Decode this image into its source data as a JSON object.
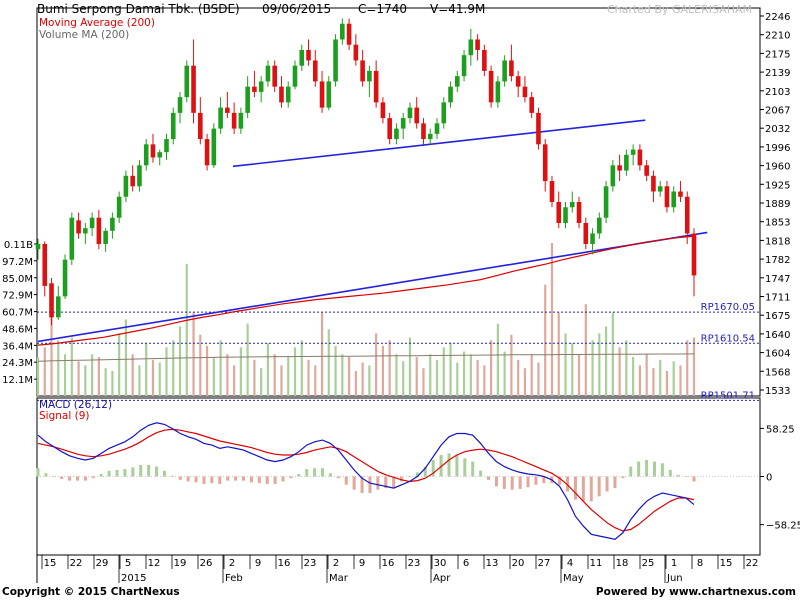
{
  "header": {
    "title": "Bumi Serpong Damai Tbk. (BSDE)",
    "date": "09/06/2015",
    "close": "C=1740",
    "volume": "V=41.9M",
    "credit": "Charted By GALERISAHAM"
  },
  "legend": {
    "ma": "Moving Average (200)",
    "vma": "Volume MA (200)",
    "macd": "MACD (26,12)",
    "signal": "Signal (9)"
  },
  "footer": {
    "copyright": "Copyright © 2015 ChartNexus",
    "powered": "Powered by www.chartnexus.com"
  },
  "colors": {
    "up": "#1e9e1e",
    "down": "#dd1111",
    "vol_up": "#a8cf98",
    "vol_down": "#e0a89a",
    "ma": "#dd0000",
    "trendline": "#2222dd",
    "macd": "#1111cc",
    "signal": "#dd0000",
    "ref": "#2222bb",
    "vma": "#8a7a6a"
  },
  "chart_data": [
    {
      "type": "candlestick",
      "title": "Bumi Serpong Damai Tbk. (BSDE)",
      "y_ticks": [
        "2246",
        "2210",
        "2175",
        "2139",
        "2103",
        "2067",
        "2032",
        "1996",
        "1960",
        "1925",
        "1889",
        "1853",
        "1818",
        "1782",
        "1747",
        "1711",
        "1675",
        "1640",
        "1604",
        "1568",
        "1533"
      ],
      "ylim": [
        1510,
        2250
      ],
      "x_ticks": [
        "15",
        "22",
        "29",
        "5",
        "12",
        "19",
        "26",
        "2",
        "9",
        "16",
        "23",
        "2",
        "9",
        "16",
        "23",
        "30",
        "6",
        "13",
        "20",
        "27",
        "4",
        "11",
        "18",
        "25",
        "1",
        "8",
        "15",
        "22"
      ],
      "month_labels": [
        "2015",
        "Feb",
        "Mar",
        "Apr",
        "May",
        "Jun"
      ],
      "reference_lines": [
        {
          "label": "RP1670.05",
          "value": 1670.05
        },
        {
          "label": "RP1610.54",
          "value": 1610.54
        },
        {
          "label": "RP1501.71",
          "value": 1501.71
        }
      ],
      "ma200_label": "Moving Average (200)",
      "ma200": [
        1607,
        1610,
        1614,
        1618,
        1622,
        1628,
        1634,
        1640,
        1647,
        1654,
        1660,
        1665,
        1671,
        1676,
        1681,
        1686,
        1690,
        1694,
        1697,
        1700,
        1703,
        1706,
        1710,
        1714,
        1718,
        1722,
        1727,
        1732,
        1740,
        1748,
        1755,
        1762,
        1770,
        1777,
        1784,
        1791,
        1797,
        1803,
        1808,
        1812,
        1815
      ],
      "trendlines": [
        {
          "from": [
            "2015-01-12",
            1614
          ],
          "to": [
            "2015-06-12",
            1822
          ]
        },
        {
          "from": [
            "2015-02-25",
            1948
          ],
          "to": [
            "2015-05-29",
            2036
          ]
        }
      ],
      "last_close": 1740,
      "ohlc": [
        [
          1790,
          1810,
          1770,
          1800
        ],
        [
          1800,
          1805,
          1700,
          1720
        ],
        [
          1725,
          1735,
          1645,
          1660
        ],
        [
          1660,
          1720,
          1655,
          1700
        ],
        [
          1700,
          1780,
          1695,
          1770
        ],
        [
          1770,
          1860,
          1760,
          1850
        ],
        [
          1845,
          1860,
          1810,
          1820
        ],
        [
          1820,
          1840,
          1800,
          1830
        ],
        [
          1830,
          1860,
          1815,
          1850
        ],
        [
          1850,
          1865,
          1790,
          1800
        ],
        [
          1800,
          1830,
          1785,
          1825
        ],
        [
          1825,
          1860,
          1810,
          1850
        ],
        [
          1850,
          1900,
          1840,
          1890
        ],
        [
          1890,
          1940,
          1880,
          1930
        ],
        [
          1930,
          1950,
          1900,
          1910
        ],
        [
          1910,
          1960,
          1900,
          1950
        ],
        [
          1950,
          2000,
          1940,
          1990
        ],
        [
          1990,
          2010,
          1955,
          1965
        ],
        [
          1965,
          1980,
          1950,
          1975
        ],
        [
          1975,
          2010,
          1960,
          2000
        ],
        [
          2000,
          2060,
          1990,
          2050
        ],
        [
          2050,
          2090,
          2030,
          2080
        ],
        [
          2080,
          2150,
          2070,
          2140
        ],
        [
          2140,
          2190,
          2030,
          2050
        ],
        [
          2050,
          2080,
          1990,
          2000
        ],
        [
          2000,
          2010,
          1940,
          1950
        ],
        [
          1950,
          2030,
          1945,
          2020
        ],
        [
          2020,
          2080,
          2010,
          2060
        ],
        [
          2060,
          2090,
          2040,
          2050
        ],
        [
          2050,
          2070,
          2010,
          2020
        ],
        [
          2020,
          2060,
          2010,
          2050
        ],
        [
          2050,
          2120,
          2040,
          2100
        ],
        [
          2100,
          2130,
          2080,
          2090
        ],
        [
          2090,
          2120,
          2070,
          2110
        ],
        [
          2110,
          2150,
          2100,
          2140
        ],
        [
          2140,
          2150,
          2090,
          2100
        ],
        [
          2100,
          2120,
          2060,
          2070
        ],
        [
          2070,
          2110,
          2060,
          2100
        ],
        [
          2100,
          2150,
          2095,
          2140
        ],
        [
          2140,
          2180,
          2130,
          2170
        ],
        [
          2170,
          2190,
          2140,
          2150
        ],
        [
          2150,
          2170,
          2100,
          2110
        ],
        [
          2110,
          2130,
          2050,
          2060
        ],
        [
          2060,
          2120,
          2055,
          2110
        ],
        [
          2110,
          2200,
          2100,
          2190
        ],
        [
          2190,
          2230,
          2180,
          2220
        ],
        [
          2220,
          2230,
          2170,
          2180
        ],
        [
          2180,
          2200,
          2140,
          2150
        ],
        [
          2150,
          2170,
          2100,
          2110
        ],
        [
          2110,
          2140,
          2080,
          2130
        ],
        [
          2130,
          2150,
          2060,
          2070
        ],
        [
          2070,
          2080,
          2030,
          2040
        ],
        [
          2040,
          2050,
          1990,
          2000
        ],
        [
          2000,
          2030,
          1990,
          2020
        ],
        [
          2020,
          2050,
          2000,
          2040
        ],
        [
          2040,
          2070,
          2030,
          2060
        ],
        [
          2060,
          2080,
          2020,
          2030
        ],
        [
          2030,
          2040,
          1990,
          2000
        ],
        [
          2000,
          2020,
          1990,
          2010
        ],
        [
          2010,
          2040,
          2000,
          2030
        ],
        [
          2030,
          2080,
          2020,
          2070
        ],
        [
          2070,
          2110,
          2060,
          2100
        ],
        [
          2100,
          2130,
          2090,
          2120
        ],
        [
          2120,
          2170,
          2110,
          2160
        ],
        [
          2160,
          2210,
          2140,
          2190
        ],
        [
          2190,
          2200,
          2150,
          2170
        ],
        [
          2170,
          2180,
          2120,
          2130
        ],
        [
          2130,
          2140,
          2060,
          2070
        ],
        [
          2070,
          2120,
          2060,
          2110
        ],
        [
          2110,
          2160,
          2100,
          2150
        ],
        [
          2150,
          2180,
          2110,
          2120
        ],
        [
          2120,
          2130,
          2080,
          2100
        ],
        [
          2100,
          2120,
          2070,
          2080
        ],
        [
          2080,
          2090,
          2040,
          2050
        ],
        [
          2050,
          2060,
          1980,
          1990
        ],
        [
          1990,
          2000,
          1900,
          1920
        ],
        [
          1920,
          1930,
          1870,
          1880
        ],
        [
          1880,
          1900,
          1830,
          1840
        ],
        [
          1840,
          1880,
          1830,
          1870
        ],
        [
          1870,
          1900,
          1860,
          1880
        ],
        [
          1880,
          1890,
          1830,
          1840
        ],
        [
          1840,
          1850,
          1790,
          1800
        ],
        [
          1800,
          1830,
          1780,
          1820
        ],
        [
          1820,
          1860,
          1810,
          1850
        ],
        [
          1850,
          1920,
          1840,
          1910
        ],
        [
          1910,
          1960,
          1900,
          1950
        ],
        [
          1950,
          1970,
          1920,
          1940
        ],
        [
          1940,
          1980,
          1930,
          1970
        ],
        [
          1970,
          1990,
          1950,
          1980
        ],
        [
          1980,
          1990,
          1940,
          1950
        ],
        [
          1950,
          1960,
          1920,
          1930
        ],
        [
          1930,
          1940,
          1880,
          1900
        ],
        [
          1900,
          1920,
          1890,
          1910
        ],
        [
          1910,
          1920,
          1860,
          1870
        ],
        [
          1870,
          1910,
          1860,
          1900
        ],
        [
          1900,
          1920,
          1880,
          1890
        ],
        [
          1890,
          1900,
          1800,
          1820
        ],
        [
          1820,
          1830,
          1700,
          1740
        ]
      ]
    },
    {
      "type": "bar",
      "title": "Volume",
      "series_name": "Volume MA (200)",
      "y_ticks": [
        "0.11B",
        "97.2M",
        "85.0M",
        "72.9M",
        "60.7M",
        "48.6M",
        "36.4M",
        "24.3M",
        "12.1M"
      ],
      "y_tick_values": [
        109.3,
        97.2,
        85.0,
        72.9,
        60.7,
        48.6,
        36.4,
        24.3,
        12.1
      ],
      "ylim": [
        0,
        121.5
      ],
      "units": "M",
      "volume_ma200": [
        25.0,
        25.3,
        25.6,
        25.8,
        26.0,
        26.3,
        26.6,
        26.9,
        27.2,
        27.4,
        27.6,
        27.8,
        28.0,
        28.1,
        28.2,
        28.3,
        28.4,
        28.5,
        28.6,
        28.6,
        28.7,
        28.8,
        28.9,
        29.0,
        29.1,
        29.2,
        29.3,
        29.4,
        29.5,
        29.6,
        29.6,
        29.7,
        29.8,
        29.8,
        29.9,
        30.0,
        30.0,
        30.1,
        30.2,
        30.2,
        30.3
      ],
      "values": [
        28,
        35,
        62,
        40,
        30,
        42,
        25,
        22,
        30,
        28,
        20,
        18,
        45,
        55,
        30,
        22,
        38,
        26,
        24,
        35,
        40,
        50,
        95,
        60,
        44,
        36,
        28,
        40,
        30,
        22,
        35,
        52,
        26,
        20,
        38,
        30,
        22,
        28,
        35,
        40,
        26,
        22,
        60,
        48,
        36,
        30,
        28,
        18,
        24,
        22,
        45,
        36,
        40,
        30,
        25,
        42,
        28,
        20,
        30,
        26,
        35,
        38,
        24,
        32,
        30,
        26,
        22,
        40,
        52,
        32,
        44,
        26,
        20,
        30,
        24,
        80,
        110,
        60,
        45,
        38,
        30,
        66,
        40,
        45,
        50,
        60,
        35,
        40,
        28,
        22,
        30,
        20,
        26,
        18,
        25,
        22,
        40,
        42
      ]
    },
    {
      "type": "line",
      "title": "MACD (26,12)",
      "series": [
        {
          "name": "MACD (26,12)",
          "values": [
            50,
            42,
            36,
            30,
            25,
            22,
            20,
            22,
            28,
            34,
            38,
            42,
            48,
            56,
            62,
            65,
            63,
            58,
            52,
            48,
            45,
            40,
            38,
            34,
            36,
            34,
            32,
            28,
            24,
            20,
            18,
            20,
            24,
            30,
            38,
            42,
            44,
            40,
            32,
            20,
            8,
            -2,
            -8,
            -10,
            -12,
            -14,
            -10,
            -6,
            0,
            10,
            24,
            38,
            48,
            52,
            52,
            50,
            40,
            28,
            18,
            12,
            8,
            5,
            3,
            2,
            0,
            -4,
            -12,
            -28,
            -48,
            -60,
            -70,
            -72,
            -74,
            -76,
            -68,
            -52,
            -40,
            -30,
            -24,
            -20,
            -22,
            -24,
            -26,
            -34
          ]
        },
        {
          "name": "Signal (9)",
          "values": [
            40,
            38,
            36,
            33,
            30,
            27,
            25,
            24,
            25,
            27,
            30,
            33,
            37,
            42,
            48,
            53,
            56,
            57,
            56,
            54,
            52,
            49,
            46,
            43,
            41,
            39,
            37,
            35,
            32,
            29,
            27,
            26,
            26,
            27,
            29,
            32,
            34,
            36,
            34,
            30,
            24,
            18,
            12,
            6,
            2,
            -1,
            -4,
            -6,
            -5,
            -2,
            4,
            12,
            20,
            26,
            30,
            32,
            33,
            32,
            30,
            27,
            24,
            20,
            16,
            12,
            8,
            4,
            -2,
            -10,
            -20,
            -30,
            -40,
            -48,
            -56,
            -62,
            -66,
            -64,
            -58,
            -50,
            -42,
            -36,
            -30,
            -26,
            -26,
            -28
          ]
        }
      ],
      "y_ticks": [
        "58.25",
        "0",
        "−58.25"
      ],
      "y_tick_values": [
        58.25,
        0,
        -58.25
      ],
      "ylim": [
        -95,
        95
      ]
    }
  ]
}
